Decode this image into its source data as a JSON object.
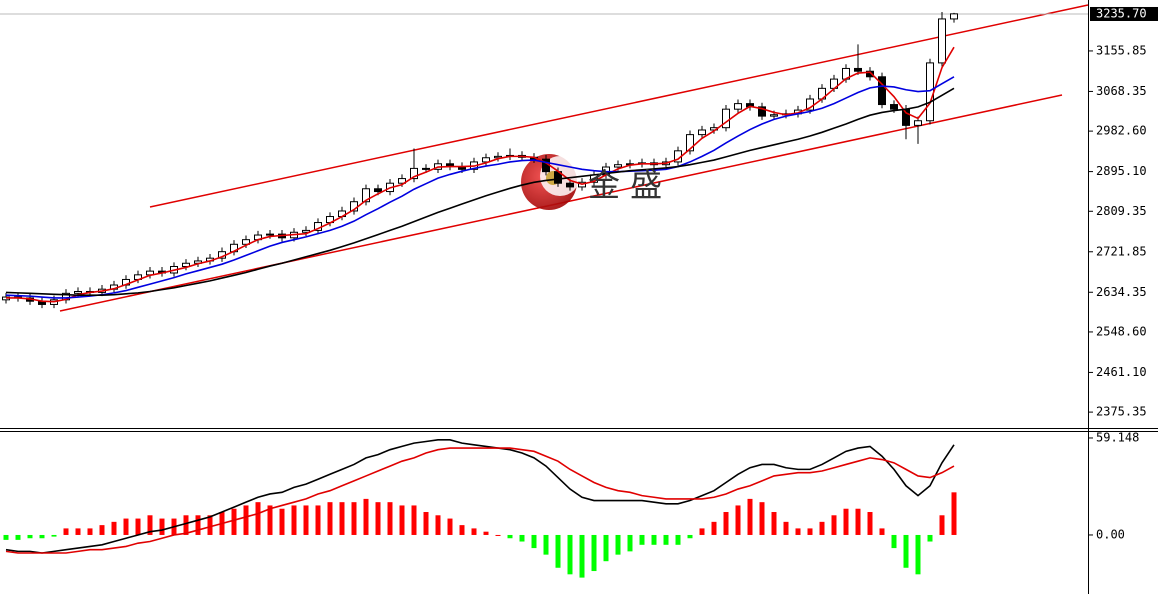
{
  "chart_data": [
    {
      "type": "candlestick",
      "open": [
        2618,
        2624,
        2622,
        2615,
        2608,
        2618,
        2632,
        2636,
        2634,
        2641,
        2650,
        2662,
        2672,
        2680,
        2676,
        2690,
        2697,
        2702,
        2708,
        2722,
        2738,
        2748,
        2758,
        2760,
        2752,
        2764,
        2768,
        2785,
        2798,
        2810,
        2830,
        2858,
        2852,
        2870,
        2880,
        2902,
        2900,
        2912,
        2906,
        2900,
        2916,
        2925,
        2928,
        2930,
        2926,
        2922,
        2895,
        2870,
        2862,
        2872,
        2888,
        2905,
        2910,
        2912,
        2914,
        2910,
        2916,
        2940,
        2975,
        2985,
        2990,
        3030,
        3042,
        3035,
        3015,
        3018,
        3020,
        3028,
        3052,
        3075,
        3095,
        3118,
        3112,
        3100,
        3040,
        3030,
        2995,
        3005,
        3130,
        3225
      ],
      "high": [
        2633,
        2633,
        2631,
        2624,
        2627,
        2641,
        2645,
        2645,
        2650,
        2659,
        2671,
        2681,
        2689,
        2689,
        2699,
        2706,
        2711,
        2717,
        2731,
        2747,
        2757,
        2767,
        2769,
        2769,
        2773,
        2777,
        2794,
        2807,
        2819,
        2839,
        2867,
        2867,
        2879,
        2889,
        2945,
        2911,
        2921,
        2921,
        2915,
        2925,
        2934,
        2937,
        2945,
        2939,
        2935,
        2931,
        2904,
        2879,
        2881,
        2897,
        2914,
        2919,
        2921,
        2923,
        2923,
        2925,
        2949,
        2984,
        2994,
        2999,
        3039,
        3051,
        3051,
        3044,
        3027,
        3029,
        3037,
        3061,
        3084,
        3104,
        3127,
        3170,
        3121,
        3109,
        3049,
        3039,
        3014,
        3139,
        3240,
        3238
      ],
      "low": [
        2610,
        2614,
        2607,
        2600,
        2600,
        2610,
        2624,
        2626,
        2626,
        2633,
        2642,
        2654,
        2664,
        2668,
        2668,
        2682,
        2689,
        2694,
        2700,
        2714,
        2730,
        2740,
        2750,
        2744,
        2744,
        2756,
        2760,
        2777,
        2790,
        2802,
        2822,
        2844,
        2844,
        2862,
        2872,
        2892,
        2892,
        2898,
        2892,
        2892,
        2908,
        2917,
        2920,
        2918,
        2914,
        2887,
        2862,
        2854,
        2854,
        2864,
        2880,
        2897,
        2902,
        2904,
        2902,
        2902,
        2908,
        2932,
        2967,
        2977,
        2982,
        3022,
        3027,
        3007,
        3007,
        3010,
        3012,
        3020,
        3044,
        3067,
        3087,
        3104,
        3092,
        3032,
        3022,
        2965,
        2955,
        2997,
        3122,
        3217
      ],
      "close": [
        2624,
        2622,
        2615,
        2608,
        2618,
        2632,
        2636,
        2634,
        2641,
        2650,
        2662,
        2672,
        2680,
        2676,
        2690,
        2697,
        2702,
        2708,
        2722,
        2738,
        2748,
        2758,
        2760,
        2752,
        2764,
        2768,
        2785,
        2798,
        2810,
        2830,
        2858,
        2852,
        2870,
        2880,
        2902,
        2900,
        2912,
        2906,
        2900,
        2916,
        2925,
        2928,
        2930,
        2926,
        2922,
        2895,
        2870,
        2862,
        2872,
        2888,
        2905,
        2910,
        2912,
        2914,
        2910,
        2916,
        2940,
        2975,
        2985,
        2990,
        3030,
        3042,
        3035,
        3015,
        3018,
        3020,
        3028,
        3052,
        3075,
        3095,
        3118,
        3112,
        3100,
        3040,
        3030,
        2995,
        3005,
        3130,
        3225,
        3236
      ],
      "up_color": "#ffffff",
      "down_color": "#000000",
      "series": [
        {
          "color": "#e00000",
          "values": [
            2622,
            2622,
            2620,
            2615,
            2614,
            2619,
            2629,
            2634,
            2637,
            2642,
            2651,
            2661,
            2671,
            2676,
            2682,
            2688,
            2696,
            2702,
            2711,
            2723,
            2736,
            2748,
            2755,
            2757,
            2759,
            2761,
            2772,
            2784,
            2798,
            2813,
            2833,
            2847,
            2860,
            2867,
            2884,
            2894,
            2905,
            2906,
            2906,
            2907,
            2914,
            2923,
            2928,
            2928,
            2926,
            2914,
            2896,
            2876,
            2868,
            2874,
            2888,
            2901,
            2909,
            2912,
            2912,
            2913,
            2922,
            2944,
            2967,
            2983,
            3002,
            3021,
            3036,
            3031,
            3023,
            3018,
            3022,
            3033,
            3052,
            3074,
            3096,
            3108,
            3110,
            3084,
            3057,
            3022,
            3010,
            3043,
            3120,
            3164
          ]
        },
        {
          "color": "#0000e0",
          "values": [
            2628,
            2627,
            2626,
            2624,
            2622,
            2622,
            2624,
            2626,
            2629,
            2633,
            2638,
            2645,
            2652,
            2659,
            2666,
            2674,
            2681,
            2688,
            2695,
            2704,
            2714,
            2724,
            2734,
            2742,
            2748,
            2754,
            2761,
            2768,
            2777,
            2788,
            2802,
            2815,
            2829,
            2842,
            2857,
            2869,
            2881,
            2889,
            2896,
            2902,
            2907,
            2911,
            2916,
            2919,
            2920,
            2915,
            2910,
            2905,
            2900,
            2897,
            2895,
            2895,
            2896,
            2897,
            2898,
            2900,
            2906,
            2916,
            2928,
            2941,
            2957,
            2972,
            2986,
            2998,
            3008,
            3015,
            3020,
            3025,
            3032,
            3042,
            3054,
            3066,
            3076,
            3080,
            3078,
            3072,
            3068,
            3070,
            3085,
            3100
          ]
        },
        {
          "color": "#000000",
          "values": [
            2634,
            2633,
            2632,
            2631,
            2630,
            2629,
            2628,
            2628,
            2628,
            2629,
            2631,
            2633,
            2636,
            2640,
            2644,
            2649,
            2654,
            2659,
            2665,
            2671,
            2677,
            2684,
            2691,
            2697,
            2704,
            2711,
            2718,
            2725,
            2733,
            2741,
            2750,
            2759,
            2768,
            2777,
            2787,
            2797,
            2807,
            2816,
            2825,
            2834,
            2843,
            2851,
            2859,
            2866,
            2872,
            2876,
            2879,
            2882,
            2885,
            2888,
            2891,
            2894,
            2897,
            2899,
            2901,
            2903,
            2906,
            2910,
            2915,
            2920,
            2927,
            2934,
            2941,
            2947,
            2953,
            2959,
            2965,
            2972,
            2980,
            2989,
            2998,
            3008,
            3017,
            3023,
            3027,
            3030,
            3035,
            3045,
            3060,
            3075
          ]
        }
      ],
      "ylim": [
        2341,
        3240
      ],
      "yticks": [
        3155.85,
        3068.35,
        {
          "value": 2982.6,
          "label": "2982.60"
        },
        {
          "value": 2895.1,
          "label": "2895.10"
        },
        2809.35,
        2721.85,
        2634.35,
        {
          "value": 2548.6,
          "label": "2548.60"
        },
        {
          "value": 2461.1,
          "label": "2461.10"
        },
        2375.35
      ],
      "last_price": {
        "value": 3235.7,
        "label": "3235.70"
      },
      "watermark": "金 盛"
    },
    {
      "type": "macd",
      "series": [
        {
          "color": "#000000",
          "values": [
            -9,
            -10,
            -10,
            -11,
            -10,
            -9,
            -8,
            -7,
            -6,
            -4,
            -2,
            0,
            2,
            3,
            5,
            7,
            9,
            11,
            14,
            17,
            20,
            23,
            25,
            26,
            29,
            31,
            34,
            37,
            40,
            43,
            47,
            49,
            52,
            54,
            56,
            57,
            58,
            58,
            56,
            55,
            54,
            53,
            52,
            50,
            47,
            42,
            35,
            28,
            23,
            21,
            21,
            21,
            21,
            21,
            20,
            19,
            19,
            21,
            24,
            27,
            32,
            37,
            41,
            43,
            43,
            41,
            40,
            40,
            43,
            47,
            51,
            53,
            54,
            48,
            40,
            30,
            24,
            30,
            44,
            55
          ]
        },
        {
          "color": "#e00000",
          "values": [
            -10,
            -11,
            -11,
            -11,
            -11,
            -11,
            -10,
            -9,
            -9,
            -8,
            -7,
            -5,
            -4,
            -2,
            0,
            1,
            3,
            5,
            7,
            9,
            11,
            13,
            16,
            18,
            20,
            22,
            25,
            27,
            30,
            33,
            36,
            39,
            42,
            45,
            47,
            50,
            52,
            53,
            53,
            53,
            53,
            53,
            53,
            52,
            51,
            48,
            45,
            40,
            36,
            32,
            29,
            27,
            26,
            24,
            23,
            22,
            22,
            22,
            22,
            23,
            25,
            28,
            30,
            33,
            36,
            37,
            38,
            38,
            39,
            41,
            43,
            45,
            47,
            46,
            44,
            40,
            36,
            35,
            38,
            42
          ]
        }
      ],
      "histogram": {
        "up_color": "#ff0000",
        "down_color": "#00ff00",
        "values": [
          -3,
          -3,
          -2,
          -2,
          -1,
          4,
          4,
          4,
          6,
          8,
          10,
          10,
          12,
          10,
          10,
          12,
          12,
          12,
          14,
          16,
          18,
          20,
          18,
          16,
          18,
          18,
          18,
          20,
          20,
          20,
          22,
          20,
          20,
          18,
          18,
          14,
          12,
          10,
          6,
          4,
          2,
          0,
          -2,
          -4,
          -8,
          -12,
          -20,
          -24,
          -26,
          -22,
          -16,
          -12,
          -10,
          -6,
          -6,
          -6,
          -6,
          -2,
          4,
          8,
          14,
          18,
          22,
          20,
          14,
          8,
          4,
          4,
          8,
          12,
          16,
          16,
          14,
          4,
          -8,
          -20,
          -24,
          -4,
          12,
          26
        ]
      },
      "ylim": [
        -36,
        63.4
      ],
      "yticks": [
        59.148,
        {
          "value": 0,
          "label": "0.00"
        }
      ]
    }
  ]
}
